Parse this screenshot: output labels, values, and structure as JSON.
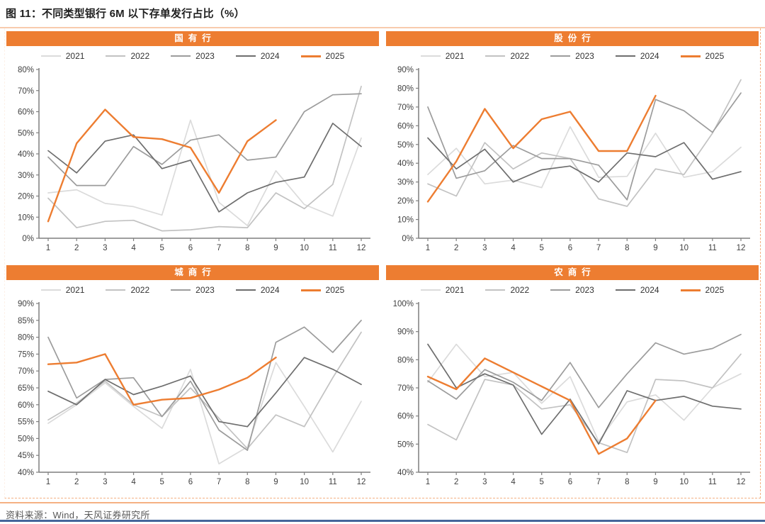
{
  "page": {
    "title": "图 11：不同类型银行 6M 以下存单发行占比（%）",
    "source_note": "资料来源：Wind，天风证券研究所"
  },
  "colors": {
    "accent_orange": "#ED7D31",
    "border_orange_light": "#F4B183",
    "title_rule_orange": "#F8CBAD",
    "axis_gray": "#7F7F7F",
    "tick_text_gray": "#404040",
    "footer_gray": "#595959",
    "bottom_border_blue": "#44669B",
    "series": {
      "2021": "#DBDBDB",
      "2022": "#C2C2C2",
      "2023": "#9C9C9C",
      "2024": "#6E6E6E",
      "2025": "#ED7D31"
    }
  },
  "legend": [
    "2021",
    "2022",
    "2023",
    "2024",
    "2025"
  ],
  "chart_data": [
    {
      "type": "line",
      "key": "state-owned-banks",
      "title": "国有行",
      "legend_position": "top",
      "grid": false,
      "categories": [
        1,
        2,
        3,
        4,
        5,
        6,
        7,
        8,
        9,
        10,
        11,
        12
      ],
      "ylim": [
        0,
        80
      ],
      "ytick_step": 10,
      "series": [
        {
          "name": "2021",
          "values": [
            21.5,
            23,
            16.5,
            15,
            11,
            56,
            17,
            6,
            32,
            16,
            10.5,
            47.5
          ]
        },
        {
          "name": "2022",
          "values": [
            19,
            5,
            8,
            8.5,
            3.5,
            4,
            5.5,
            5,
            21.5,
            14,
            25.5,
            72
          ]
        },
        {
          "name": "2023",
          "values": [
            38.5,
            25,
            25,
            43.5,
            35,
            46.5,
            49,
            37,
            38.5,
            60,
            68,
            68.5
          ]
        },
        {
          "name": "2024",
          "values": [
            41.5,
            31,
            46,
            49,
            33,
            37,
            12.5,
            21.5,
            26.5,
            29,
            54.5,
            43.5
          ]
        },
        {
          "name": "2025",
          "values": [
            8,
            45,
            61,
            48,
            47,
            43,
            21.5,
            46,
            56
          ]
        }
      ]
    },
    {
      "type": "line",
      "key": "joint-stock-banks",
      "title": "股份行",
      "legend_position": "top",
      "grid": false,
      "categories": [
        1,
        2,
        3,
        4,
        5,
        6,
        7,
        8,
        9,
        10,
        11,
        12
      ],
      "ylim": [
        0,
        90
      ],
      "ytick_step": 10,
      "series": [
        {
          "name": "2021",
          "values": [
            34,
            48,
            29,
            31,
            27,
            59.5,
            32.5,
            33,
            56,
            32.5,
            35.5,
            48.5
          ]
        },
        {
          "name": "2022",
          "values": [
            29,
            22.5,
            51,
            37,
            45.5,
            42.5,
            21,
            17,
            37,
            34,
            56,
            84.5
          ]
        },
        {
          "name": "2023",
          "values": [
            70,
            32,
            36,
            49.5,
            42.5,
            42.5,
            39,
            20.5,
            74,
            68,
            56.5,
            77.5
          ]
        },
        {
          "name": "2024",
          "values": [
            53.5,
            37,
            47.5,
            30,
            36.5,
            38.5,
            30,
            45.5,
            43.5,
            51,
            31.5,
            35.5
          ]
        },
        {
          "name": "2025",
          "values": [
            19.5,
            41,
            69,
            48,
            63.5,
            67.5,
            46.5,
            46.5,
            76
          ]
        }
      ]
    },
    {
      "type": "line",
      "key": "city-commercial-banks",
      "title": "城商行",
      "legend_position": "top",
      "grid": false,
      "categories": [
        1,
        2,
        3,
        4,
        5,
        6,
        7,
        8,
        9,
        10,
        11,
        12
      ],
      "ylim": [
        40,
        90
      ],
      "ytick_step": 5,
      "series": [
        {
          "name": "2021",
          "values": [
            54.5,
            60,
            66.5,
            59.5,
            53,
            70.5,
            42.5,
            47.5,
            72.5,
            59.5,
            46,
            61
          ]
        },
        {
          "name": "2022",
          "values": [
            55.5,
            60.5,
            67,
            60,
            56.5,
            65,
            56,
            47,
            57,
            53.5,
            68,
            81.5
          ]
        },
        {
          "name": "2023",
          "values": [
            80,
            62,
            67.5,
            68,
            56.5,
            67,
            52.5,
            46.5,
            78.5,
            83,
            75.5,
            85
          ]
        },
        {
          "name": "2024",
          "values": [
            64,
            60,
            67.5,
            63,
            65.5,
            68.5,
            55,
            53.5,
            63.5,
            74,
            70.5,
            66
          ]
        },
        {
          "name": "2025",
          "values": [
            72,
            72.5,
            75,
            60,
            61.5,
            62,
            64.5,
            68,
            74
          ]
        }
      ]
    },
    {
      "type": "line",
      "key": "rural-commercial-banks",
      "title": "农商行",
      "legend_position": "top",
      "grid": false,
      "categories": [
        1,
        2,
        3,
        4,
        5,
        6,
        7,
        8,
        9,
        10,
        11,
        12
      ],
      "ylim": [
        40,
        100
      ],
      "ytick_step": 10,
      "series": [
        {
          "name": "2021",
          "values": [
            72,
            85.5,
            74,
            75.5,
            64.5,
            74,
            51,
            65,
            67.5,
            58.5,
            70,
            75
          ]
        },
        {
          "name": "2022",
          "values": [
            57,
            51.5,
            73,
            71,
            62.5,
            64,
            50.5,
            47,
            73,
            72.5,
            70,
            82
          ]
        },
        {
          "name": "2023",
          "values": [
            72.5,
            66,
            76.5,
            72,
            65.5,
            79,
            63,
            75,
            86,
            82,
            84,
            89
          ]
        },
        {
          "name": "2024",
          "values": [
            85.5,
            70,
            75,
            71,
            53.5,
            66,
            50,
            69,
            65.5,
            67,
            63.5,
            62.5
          ]
        },
        {
          "name": "2025",
          "values": [
            74,
            69.5,
            80.5,
            75.5,
            70.5,
            65.5,
            46.5,
            52,
            65.5
          ]
        }
      ]
    }
  ]
}
